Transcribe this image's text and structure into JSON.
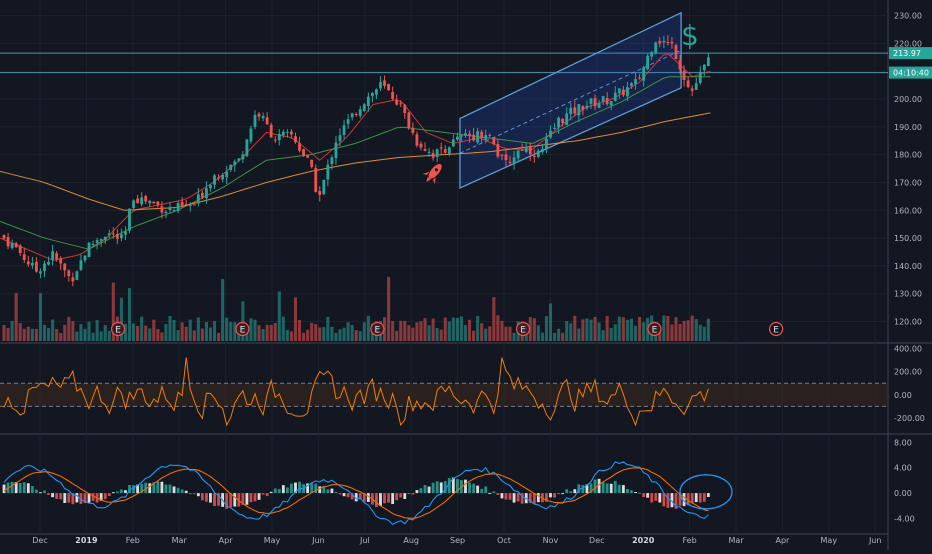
{
  "chart_data": {
    "type": "candlestick",
    "x_axis": {
      "labels": [
        "Dec",
        "2019",
        "Feb",
        "Mar",
        "Apr",
        "May",
        "Jun",
        "Jul",
        "Aug",
        "Sep",
        "Oct",
        "Nov",
        "Dec",
        "2020",
        "Feb",
        "Mar",
        "Apr",
        "May",
        "Jun"
      ],
      "bold_labels": [
        "2019",
        "2020"
      ]
    },
    "price_axis": {
      "range": [
        113,
        232
      ],
      "tick_labels": [
        120,
        130,
        140,
        150,
        160,
        170,
        180,
        190,
        200,
        210,
        220,
        230
      ],
      "tick_format": "0.00",
      "last_price": "213.97",
      "countdown": "04:10:40",
      "last_price_color": "#26a69a"
    },
    "price_series": [
      {
        "name": "price",
        "color": "#26a69a",
        "down_color": "#ef5350",
        "anchors": [
          [
            0,
            151
          ],
          [
            0.02,
            146
          ],
          [
            0.04,
            138
          ],
          [
            0.06,
            144
          ],
          [
            0.08,
            135
          ],
          [
            0.1,
            147
          ],
          [
            0.12,
            152
          ],
          [
            0.14,
            149
          ],
          [
            0.15,
            165
          ],
          [
            0.17,
            163
          ],
          [
            0.19,
            160
          ],
          [
            0.22,
            162
          ],
          [
            0.24,
            172
          ],
          [
            0.27,
            178
          ],
          [
            0.29,
            196
          ],
          [
            0.31,
            186
          ],
          [
            0.33,
            187
          ],
          [
            0.35,
            176
          ],
          [
            0.36,
            164
          ],
          [
            0.38,
            186
          ],
          [
            0.41,
            199
          ],
          [
            0.43,
            205
          ],
          [
            0.45,
            199
          ],
          [
            0.47,
            185
          ],
          [
            0.49,
            180
          ],
          [
            0.52,
            186
          ],
          [
            0.55,
            188
          ],
          [
            0.57,
            176
          ],
          [
            0.59,
            183
          ],
          [
            0.61,
            180
          ],
          [
            0.63,
            192
          ],
          [
            0.66,
            198
          ],
          [
            0.69,
            200
          ],
          [
            0.72,
            206
          ],
          [
            0.74,
            222
          ],
          [
            0.76,
            219
          ],
          [
            0.78,
            202
          ],
          [
            0.79,
            208
          ],
          [
            0.8,
            213.97
          ]
        ]
      }
    ],
    "moving_averages": [
      {
        "name": "ma-fast",
        "color": "#e53935",
        "values": [
          [
            0,
            150
          ],
          [
            0.03,
            146
          ],
          [
            0.06,
            142
          ],
          [
            0.09,
            144
          ],
          [
            0.12,
            150
          ],
          [
            0.15,
            160
          ],
          [
            0.18,
            162
          ],
          [
            0.21,
            164
          ],
          [
            0.24,
            170
          ],
          [
            0.27,
            178
          ],
          [
            0.3,
            188
          ],
          [
            0.33,
            186
          ],
          [
            0.36,
            178
          ],
          [
            0.39,
            186
          ],
          [
            0.42,
            198
          ],
          [
            0.45,
            200
          ],
          [
            0.48,
            188
          ],
          [
            0.51,
            184
          ],
          [
            0.54,
            186
          ],
          [
            0.57,
            182
          ],
          [
            0.6,
            182
          ],
          [
            0.63,
            190
          ],
          [
            0.66,
            197
          ],
          [
            0.69,
            200
          ],
          [
            0.72,
            206
          ],
          [
            0.75,
            217
          ],
          [
            0.78,
            208
          ],
          [
            0.8,
            210
          ]
        ]
      },
      {
        "name": "ma-mid",
        "color": "#43a047",
        "values": [
          [
            0,
            156
          ],
          [
            0.05,
            150
          ],
          [
            0.1,
            146
          ],
          [
            0.15,
            154
          ],
          [
            0.2,
            160
          ],
          [
            0.25,
            168
          ],
          [
            0.3,
            178
          ],
          [
            0.35,
            180
          ],
          [
            0.4,
            184
          ],
          [
            0.45,
            190
          ],
          [
            0.5,
            188
          ],
          [
            0.55,
            186
          ],
          [
            0.6,
            184
          ],
          [
            0.65,
            192
          ],
          [
            0.7,
            199
          ],
          [
            0.75,
            208
          ],
          [
            0.8,
            208
          ]
        ]
      },
      {
        "name": "ma-slow",
        "color": "#ef9a33",
        "values": [
          [
            0,
            174
          ],
          [
            0.05,
            170
          ],
          [
            0.1,
            164
          ],
          [
            0.14,
            160
          ],
          [
            0.2,
            161
          ],
          [
            0.25,
            165
          ],
          [
            0.3,
            170
          ],
          [
            0.35,
            174
          ],
          [
            0.4,
            177
          ],
          [
            0.45,
            179
          ],
          [
            0.5,
            180
          ],
          [
            0.55,
            181
          ],
          [
            0.6,
            183
          ],
          [
            0.65,
            185
          ],
          [
            0.7,
            188
          ],
          [
            0.75,
            192
          ],
          [
            0.8,
            195
          ]
        ]
      }
    ],
    "volume": {
      "color_up": "#26a69a",
      "color_down": "#ef5350",
      "max": 1.0
    },
    "earnings_markers": [
      {
        "label": "E",
        "x": 0.133
      },
      {
        "label": "E",
        "x": 0.273
      },
      {
        "label": "E",
        "x": 0.425
      },
      {
        "label": "E",
        "x": 0.589
      },
      {
        "label": "E",
        "x": 0.737
      },
      {
        "label": "E",
        "x": 0.874,
        "future": true
      }
    ],
    "channel": {
      "upper_start": [
        0.518,
        193
      ],
      "upper_end": [
        0.767,
        231
      ],
      "lower_start": [
        0.518,
        168
      ],
      "lower_end": [
        0.767,
        204
      ],
      "mid_color": "#5b8fd6"
    },
    "horizontal_lines": [
      216.5,
      209.5
    ],
    "annotations": [
      {
        "icon": "rocket",
        "x": 0.49,
        "y": 174,
        "color": "#ef5350"
      },
      {
        "icon": "dollar",
        "x": 0.777,
        "y": 223,
        "color": "#26a69a",
        "text": "$"
      }
    ],
    "cci_panel": {
      "tick_labels": [
        "400.00",
        "200.00",
        "0.00",
        "-200.00"
      ],
      "tick_values": [
        400,
        200,
        0,
        -200
      ],
      "range": [
        -320,
        420
      ],
      "band": [
        100,
        -100
      ],
      "color": "#f57c00"
    },
    "macd_panel": {
      "tick_labels": [
        "8.00",
        "4.00",
        "0.00",
        "-4.00"
      ],
      "tick_values": [
        8,
        4,
        0,
        -4
      ],
      "range": [
        -5.5,
        9
      ],
      "macd_color": "#2196f3",
      "signal_color": "#ef6c00",
      "hist_up": "#26a69a",
      "hist_down": "#ef5350",
      "hist_light": "#ffffff"
    }
  }
}
